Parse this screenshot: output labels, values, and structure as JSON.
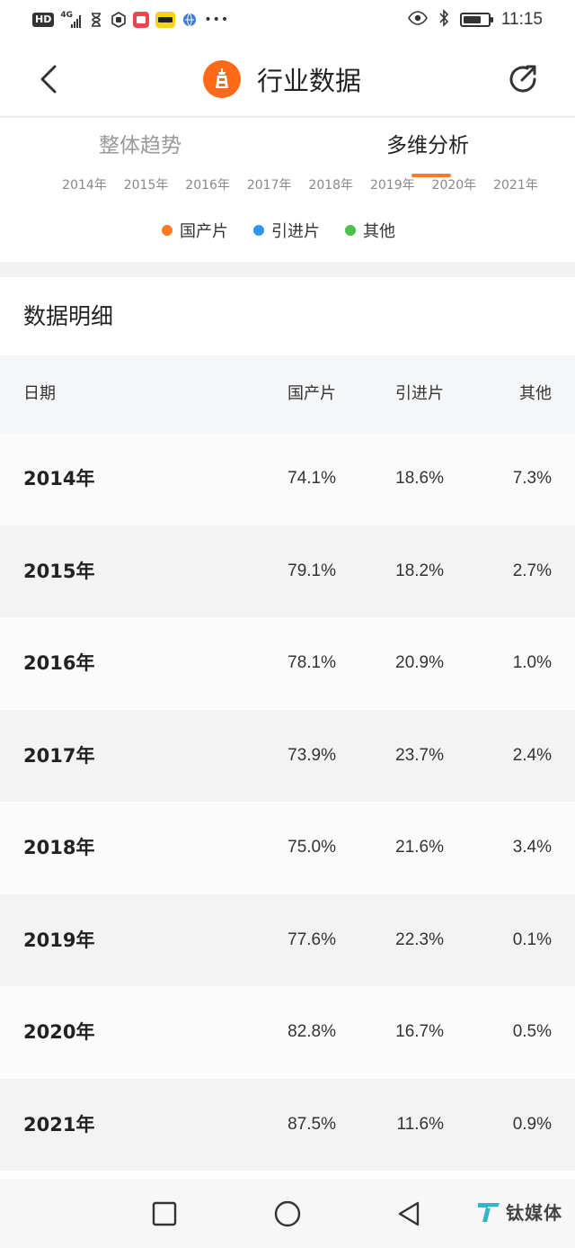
{
  "status_bar": {
    "hd": "HD",
    "network": "4G",
    "time": "11:15",
    "battery_level": 0.75
  },
  "header": {
    "title": "行业数据",
    "back_icon": "chevron-left-icon",
    "share_icon": "share-icon",
    "accent": "#ff6a1a"
  },
  "tabs": {
    "overall": "整体趋势",
    "multi": "多维分析",
    "active": "multi"
  },
  "years": [
    "2014年",
    "2015年",
    "2016年",
    "2017年",
    "2018年",
    "2019年",
    "2020年",
    "2021年"
  ],
  "legend": [
    {
      "label": "国产片",
      "color": "#ff7a21"
    },
    {
      "label": "引进片",
      "color": "#2b95f0"
    },
    {
      "label": "其他",
      "color": "#4cbf4c"
    }
  ],
  "detail": {
    "title": "数据明细",
    "headers": {
      "date": "日期",
      "domestic": "国产片",
      "imported": "引进片",
      "other": "其他"
    },
    "rows": [
      {
        "date": "2014年",
        "domestic": "74.1%",
        "imported": "18.6%",
        "other": "7.3%"
      },
      {
        "date": "2015年",
        "domestic": "79.1%",
        "imported": "18.2%",
        "other": "2.7%"
      },
      {
        "date": "2016年",
        "domestic": "78.1%",
        "imported": "20.9%",
        "other": "1.0%"
      },
      {
        "date": "2017年",
        "domestic": "73.9%",
        "imported": "23.7%",
        "other": "2.4%"
      },
      {
        "date": "2018年",
        "domestic": "75.0%",
        "imported": "21.6%",
        "other": "3.4%"
      },
      {
        "date": "2019年",
        "domestic": "77.6%",
        "imported": "22.3%",
        "other": "0.1%"
      },
      {
        "date": "2020年",
        "domestic": "82.8%",
        "imported": "16.7%",
        "other": "0.5%"
      },
      {
        "date": "2021年",
        "domestic": "87.5%",
        "imported": "11.6%",
        "other": "0.9%"
      }
    ]
  },
  "watermark": {
    "text": "钛媒体"
  }
}
